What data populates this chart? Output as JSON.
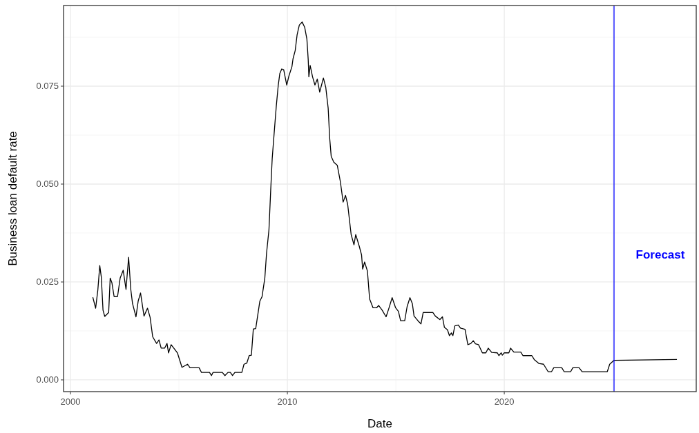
{
  "chart_data": {
    "type": "line",
    "xlabel": "Date",
    "ylabel": "Business loan default rate",
    "xlim": [
      1999.68,
      2028.85
    ],
    "ylim": [
      -0.003,
      0.0956
    ],
    "xticks": [
      2000,
      2010,
      2020
    ],
    "yticks": [
      {
        "value": 0,
        "label": "0.000"
      },
      {
        "value": 0.025,
        "label": "0.025"
      },
      {
        "value": 0.05,
        "label": "0.050"
      },
      {
        "value": 0.075,
        "label": "0.075"
      }
    ],
    "grid": true,
    "ref_lines": [
      {
        "axis": "x",
        "value": 2025.06,
        "label": "Forecast",
        "color": "#0000ff"
      }
    ],
    "series": [
      {
        "color": "#000000",
        "x": [
          2001.03,
          2001.16,
          2001.26,
          2001.35,
          2001.42,
          2001.5,
          2001.58,
          2001.76,
          2001.83,
          2001.91,
          2002.01,
          2002.17,
          2002.29,
          2002.43,
          2002.56,
          2002.68,
          2002.78,
          2002.86,
          2003.02,
          2003.12,
          2003.23,
          2003.39,
          2003.55,
          2003.67,
          2003.79,
          2003.97,
          2004.08,
          2004.18,
          2004.34,
          2004.45,
          2004.52,
          2004.64,
          2004.93,
          2005.14,
          2005.4,
          2005.51,
          2005.93,
          2006.04,
          2006.41,
          2006.5,
          2006.57,
          2007.0,
          2007.12,
          2007.26,
          2007.37,
          2007.47,
          2007.58,
          2007.9,
          2008.0,
          2008.13,
          2008.24,
          2008.34,
          2008.43,
          2008.54,
          2008.73,
          2008.83,
          2008.96,
          2009.04,
          2009.15,
          2009.23,
          2009.3,
          2009.39,
          2009.49,
          2009.58,
          2009.65,
          2009.74,
          2009.83,
          2009.97,
          2010.07,
          2010.21,
          2010.26,
          2010.36,
          2010.45,
          2010.55,
          2010.68,
          2010.8,
          2010.9,
          2010.96,
          2010.99,
          2011.05,
          2011.16,
          2011.27,
          2011.38,
          2011.49,
          2011.66,
          2011.77,
          2011.88,
          2011.95,
          2012.02,
          2012.14,
          2012.3,
          2012.44,
          2012.57,
          2012.68,
          2012.78,
          2012.94,
          2013.07,
          2013.15,
          2013.31,
          2013.42,
          2013.47,
          2013.56,
          2013.69,
          2013.79,
          2013.95,
          2014.11,
          2014.21,
          2014.37,
          2014.55,
          2014.67,
          2014.83,
          2014.99,
          2015.12,
          2015.22,
          2015.41,
          2015.52,
          2015.65,
          2015.76,
          2015.84,
          2016.02,
          2016.16,
          2016.26,
          2016.71,
          2016.82,
          2017.03,
          2017.15,
          2017.24,
          2017.38,
          2017.47,
          2017.56,
          2017.63,
          2017.72,
          2017.88,
          2017.98,
          2018.19,
          2018.32,
          2018.46,
          2018.57,
          2018.67,
          2018.81,
          2018.99,
          2019.15,
          2019.26,
          2019.42,
          2019.68,
          2019.75,
          2019.86,
          2019.91,
          2020.0,
          2020.21,
          2020.29,
          2020.44,
          2020.76,
          2020.86,
          2021.27,
          2021.38,
          2021.59,
          2021.81,
          2022.02,
          2022.18,
          2022.28,
          2022.65,
          2022.76,
          2023.06,
          2023.16,
          2023.45,
          2023.59,
          2024.75,
          2024.86,
          2025.06,
          2027.96
        ],
        "values": [
          0.0211,
          0.0183,
          0.0229,
          0.0292,
          0.0263,
          0.0178,
          0.0162,
          0.0172,
          0.026,
          0.0248,
          0.0213,
          0.0213,
          0.026,
          0.028,
          0.0231,
          0.0313,
          0.0231,
          0.0195,
          0.0161,
          0.0201,
          0.0222,
          0.0163,
          0.0183,
          0.016,
          0.011,
          0.0093,
          0.0102,
          0.0081,
          0.0081,
          0.0093,
          0.0069,
          0.009,
          0.0069,
          0.0032,
          0.004,
          0.0031,
          0.0031,
          0.0019,
          0.0019,
          0.0011,
          0.0019,
          0.0019,
          0.0011,
          0.0019,
          0.0019,
          0.0011,
          0.0019,
          0.0019,
          0.004,
          0.0043,
          0.0062,
          0.0063,
          0.013,
          0.0131,
          0.0201,
          0.0212,
          0.026,
          0.0324,
          0.0383,
          0.0483,
          0.0565,
          0.063,
          0.07,
          0.0753,
          0.0782,
          0.0794,
          0.0792,
          0.0753,
          0.0776,
          0.08,
          0.082,
          0.0841,
          0.0882,
          0.0906,
          0.0914,
          0.09,
          0.087,
          0.0818,
          0.0774,
          0.0803,
          0.0774,
          0.0753,
          0.0768,
          0.0735,
          0.0771,
          0.0747,
          0.0694,
          0.0618,
          0.0571,
          0.0556,
          0.0548,
          0.0507,
          0.0454,
          0.0471,
          0.0448,
          0.0371,
          0.0345,
          0.0371,
          0.0342,
          0.0319,
          0.0283,
          0.0301,
          0.0278,
          0.0207,
          0.0184,
          0.0184,
          0.019,
          0.0178,
          0.0161,
          0.0181,
          0.021,
          0.0184,
          0.0175,
          0.0151,
          0.0151,
          0.0187,
          0.021,
          0.0195,
          0.0163,
          0.0151,
          0.0143,
          0.0172,
          0.0172,
          0.0163,
          0.0154,
          0.0161,
          0.0134,
          0.0128,
          0.0113,
          0.012,
          0.0113,
          0.0138,
          0.014,
          0.0132,
          0.0129,
          0.009,
          0.0093,
          0.01,
          0.0092,
          0.009,
          0.0069,
          0.0069,
          0.0081,
          0.007,
          0.0069,
          0.0062,
          0.0069,
          0.0063,
          0.0069,
          0.0069,
          0.0081,
          0.0071,
          0.0071,
          0.0062,
          0.0062,
          0.0052,
          0.0042,
          0.004,
          0.0021,
          0.0021,
          0.0031,
          0.0031,
          0.0021,
          0.0021,
          0.0031,
          0.0031,
          0.0021,
          0.0021,
          0.004,
          0.005,
          0.0052
        ]
      }
    ]
  }
}
